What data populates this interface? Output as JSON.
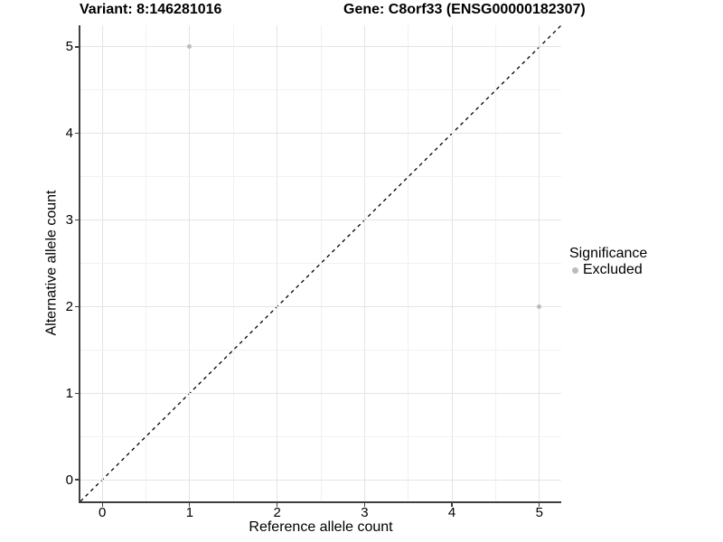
{
  "title": {
    "variant": "Variant: 8:146281016",
    "gene": "Gene: C8orf33 (ENSG00000182307)"
  },
  "axes": {
    "x": {
      "label": "Reference allele count",
      "ticks": [
        0,
        1,
        2,
        3,
        4,
        5
      ]
    },
    "y": {
      "label": "Alternative allele count",
      "ticks": [
        0,
        1,
        2,
        3,
        4,
        5
      ]
    }
  },
  "legend": {
    "title": "Significance",
    "items": [
      {
        "label": "Excluded",
        "color": "#bcbcbc"
      }
    ]
  },
  "colors": {
    "background": "#ffffff",
    "grid_major": "#e4e4e4",
    "grid_minor": "#f1f1f1",
    "axis_line": "#404040",
    "point": "#bcbcbc",
    "reference_line": "#000000",
    "text": "#000000"
  },
  "chart_data": {
    "type": "scatter",
    "title": "Variant: 8:146281016   Gene: C8orf33 (ENSG00000182307)",
    "xlabel": "Reference allele count",
    "ylabel": "Alternative allele count",
    "xlim": [
      -0.25,
      5.25
    ],
    "ylim": [
      -0.25,
      5.25
    ],
    "x_ticks": [
      0,
      1,
      2,
      3,
      4,
      5
    ],
    "y_ticks": [
      0,
      1,
      2,
      3,
      4,
      5
    ],
    "grid": true,
    "legend_position": "right",
    "series": [
      {
        "name": "Excluded",
        "color": "#bcbcbc",
        "points": [
          {
            "x": 1,
            "y": 5
          },
          {
            "x": 5,
            "y": 2
          }
        ]
      }
    ],
    "reference_line": {
      "equation": "y = x",
      "style": "dashed",
      "color": "#000000"
    }
  }
}
